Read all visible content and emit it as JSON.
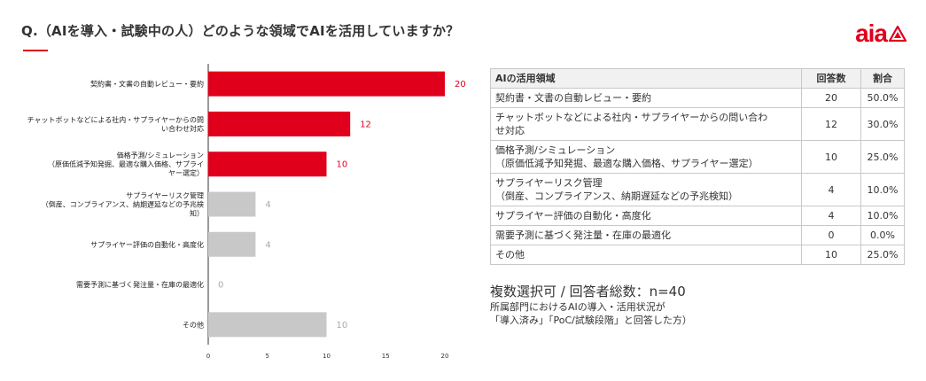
{
  "header": {
    "question": "Q.（AIを導入・試験中の人）どのような領域でAIを活用していますか？",
    "logo_text": "aia",
    "logo_icon": "aia-triangle-icon"
  },
  "chart_data": {
    "type": "bar",
    "orientation": "horizontal",
    "categories": [
      [
        "契約書・文書の自動レビュー・要約"
      ],
      [
        "チャットボットなどによる社内・サプライヤーからの問",
        "い合わせ対応"
      ],
      [
        "価格予測/シミュレーション",
        "（原価低減予知発掘、最適な購入価格、サプライ",
        "ヤー選定）"
      ],
      [
        "サプライヤーリスク管理",
        "（倒産、コンプライアンス、納期遅延などの予兆検",
        "知）"
      ],
      [
        "サプライヤー評価の自動化・高度化"
      ],
      [
        "需要予測に基づく発注量・在庫の最適化"
      ],
      [
        "その他"
      ]
    ],
    "values": [
      20,
      12,
      10,
      4,
      4,
      0,
      10
    ],
    "highlight": [
      true,
      true,
      true,
      false,
      false,
      false,
      false
    ],
    "xlim": [
      0,
      20
    ],
    "xticks": [
      0,
      5,
      10,
      15,
      20
    ],
    "colors": {
      "highlight": "#e0001b",
      "other": "#c8c8c8",
      "label_other": "#aaaaaa"
    }
  },
  "table": {
    "headers": [
      "AIの活用領域",
      "回答数",
      "割合"
    ],
    "rows": [
      {
        "area": [
          "契約書・文書の自動レビュー・要約"
        ],
        "count": "20",
        "pct": "50.0%"
      },
      {
        "area": [
          "チャットボットなどによる社内・サプライヤーからの問い合わ",
          "せ対応"
        ],
        "count": "12",
        "pct": "30.0%"
      },
      {
        "area": [
          "価格予測/シミュレーション",
          "（原価低減予知発掘、最適な購入価格、サプライヤー選定）"
        ],
        "count": "10",
        "pct": "25.0%"
      },
      {
        "area": [
          "サプライヤーリスク管理",
          "（倒産、コンプライアンス、納期遅延などの予兆検知）"
        ],
        "count": "4",
        "pct": "10.0%"
      },
      {
        "area": [
          "サプライヤー評価の自動化・高度化"
        ],
        "count": "4",
        "pct": "10.0%"
      },
      {
        "area": [
          "需要予測に基づく発注量・在庫の最適化"
        ],
        "count": "0",
        "pct": "0.0%"
      },
      {
        "area": [
          "その他"
        ],
        "count": "10",
        "pct": "25.0%"
      }
    ]
  },
  "note": {
    "main": "複数選択可 / 回答者総数：n=40",
    "sub1": "所属部門におけるAIの導入・活用状況が",
    "sub2": "「導入済み」「PoC/試験段階」と回答した方）"
  }
}
